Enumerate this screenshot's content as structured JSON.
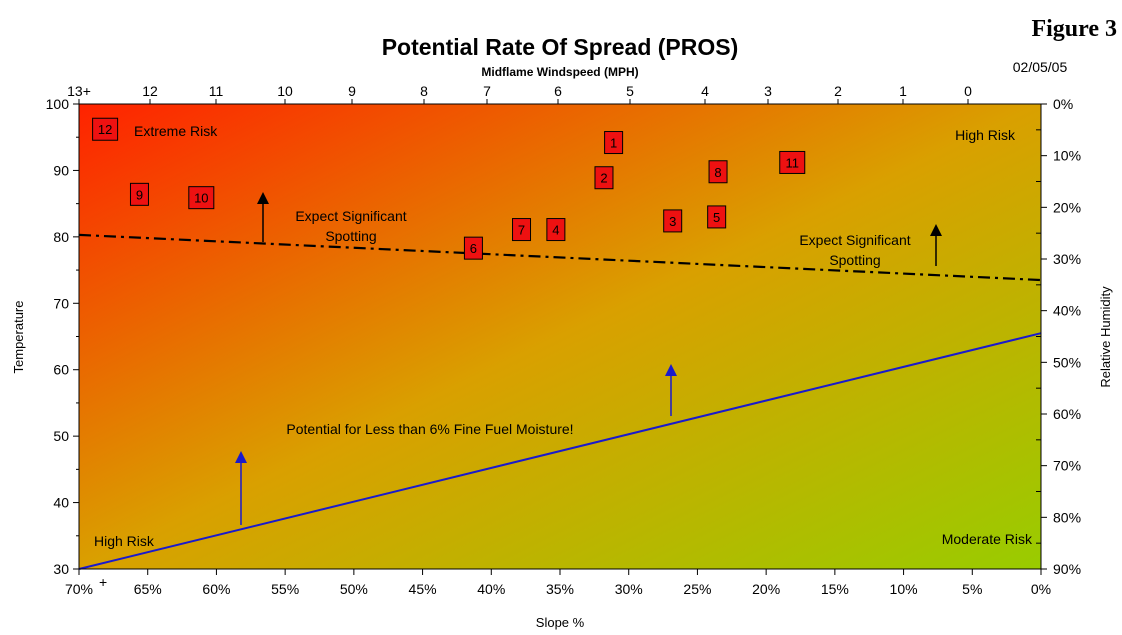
{
  "figure_label": "Figure 3",
  "date": "02/05/05",
  "chart_data": {
    "type": "scatter",
    "title": "Potential Rate Of Spread (PROS)",
    "top_axis_label": "Midflame Windspeed (MPH)",
    "xlabel": "Slope %",
    "ylabel": "Temperature",
    "y2label": "Relative Humidity",
    "xlim": [
      70,
      0
    ],
    "ylim": [
      30,
      100
    ],
    "x_ticks": [
      "70%",
      "65%",
      "60%",
      "55%",
      "50%",
      "45%",
      "40%",
      "35%",
      "30%",
      "25%",
      "20%",
      "15%",
      "10%",
      "5%",
      "0%"
    ],
    "x_tick_plus": "+",
    "top_ticks": [
      "13+",
      "12",
      "11",
      "10",
      "9",
      "8",
      "7",
      "6",
      "5",
      "4",
      "3",
      "2",
      "1",
      "0"
    ],
    "y_ticks": [
      "30",
      "40",
      "50",
      "60",
      "70",
      "80",
      "90",
      "100"
    ],
    "y2_ticks": [
      "0%",
      "10%",
      "20%",
      "30%",
      "40%",
      "50%",
      "60%",
      "70%",
      "80%",
      "90%"
    ],
    "points": [
      {
        "label": "1",
        "x": 31.1,
        "y": 94.2
      },
      {
        "label": "2",
        "x": 31.8,
        "y": 88.9
      },
      {
        "label": "3",
        "x": 26.8,
        "y": 82.4
      },
      {
        "label": "4",
        "x": 35.3,
        "y": 81.1
      },
      {
        "label": "5",
        "x": 23.6,
        "y": 83.0
      },
      {
        "label": "6",
        "x": 41.3,
        "y": 78.3
      },
      {
        "label": "7",
        "x": 37.8,
        "y": 81.1
      },
      {
        "label": "8",
        "x": 23.5,
        "y": 89.8
      },
      {
        "label": "9",
        "x": 65.6,
        "y": 86.4
      },
      {
        "label": "10",
        "x": 61.1,
        "y": 85.9
      },
      {
        "label": "11",
        "x": 18.1,
        "y": 91.2
      },
      {
        "label": "12",
        "x": 68.1,
        "y": 96.2
      }
    ],
    "lines": [
      {
        "name": "Expect Significant Spotting",
        "style": "dash-dot",
        "color": "#000000",
        "from": [
          70,
          80.3
        ],
        "to": [
          0,
          73.5
        ]
      },
      {
        "name": "Potential for Less than 6% Fine Fuel Moisture!",
        "style": "solid",
        "color": "#1a1acc",
        "from": [
          70,
          30
        ],
        "to": [
          0,
          65.5
        ]
      }
    ],
    "annotations": {
      "extreme_risk": "Extreme Risk",
      "high_risk_top": "High Risk",
      "high_risk_bottom": "High Risk",
      "moderate_risk": "Moderate Risk",
      "spotting_left_line1": "Expect Significant",
      "spotting_left_line2": "Spotting",
      "spotting_right_line1": "Expect Significant",
      "spotting_right_line2": "Spotting",
      "fuel_moisture": "Potential for Less than 6% Fine Fuel Moisture!"
    },
    "colors": {
      "extreme": "#ff2200",
      "mid": "#d9a000",
      "moderate": "#99cc00",
      "marker_fill": "#ee1111"
    },
    "grid": false,
    "legend": "none"
  }
}
